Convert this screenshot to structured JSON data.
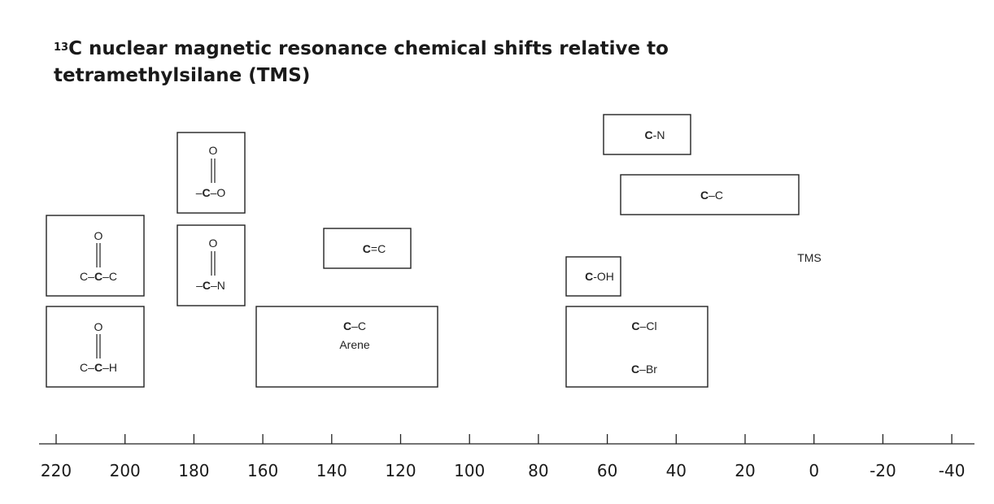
{
  "title_sup": "13",
  "title_main": "C nuclear magnetic resonance chemical shifts relative to",
  "title_line2": "tetramethylsilane (TMS)",
  "chart_data": {
    "type": "range-diagram",
    "xlim": [
      220,
      -40
    ],
    "x_ticks": [
      "220",
      "200",
      "180",
      "160",
      "140",
      "120",
      "100",
      "80",
      "60",
      "40",
      "20",
      "0",
      "-20",
      "-40"
    ],
    "ranges": [
      {
        "label": "C–C–C ketone",
        "from": 223,
        "to": 195
      },
      {
        "label": "C–C–H aldehyde",
        "from": 223,
        "to": 195
      },
      {
        "label": "–C–O",
        "from": 185,
        "to": 165
      },
      {
        "label": "–C–N",
        "from": 185,
        "to": 165
      },
      {
        "label": "C=C",
        "from": 143,
        "to": 117
      },
      {
        "label": "C–C Arene",
        "from": 162,
        "to": 109
      },
      {
        "label": "C-N",
        "from": 61,
        "to": 36
      },
      {
        "label": "C–C",
        "from": 56,
        "to": 4
      },
      {
        "label": "C-OH",
        "from": 72,
        "to": 56
      },
      {
        "label": "C–Cl / C–Br",
        "from": 72,
        "to": 30
      }
    ],
    "annotations": [
      {
        "text": "TMS",
        "x": 0
      }
    ]
  },
  "labels": {
    "o": "O",
    "ketone_l": "C–",
    "ketone_c": "C",
    "ketone_r": "–C",
    "ald_l": "C–",
    "ald_c": "C",
    "ald_r": "–H",
    "ester_l": "–",
    "ester_c": "C",
    "ester_r": "–O",
    "amide_l": "–",
    "amide_c": "C",
    "amide_r": "–N",
    "alkene_c": "C",
    "alkene_r": "=C",
    "arene_c": "C",
    "arene_r": "–C",
    "arene_word": "Arene",
    "cn_c": "C",
    "cn_r": "-N",
    "cc_c": "C",
    "cc_r": "–C",
    "coh_c": "C",
    "coh_r": "-OH",
    "ccl_c": "C",
    "ccl_r": "–Cl",
    "cbr_c": "C",
    "cbr_r": "–Br",
    "tms": "TMS"
  }
}
